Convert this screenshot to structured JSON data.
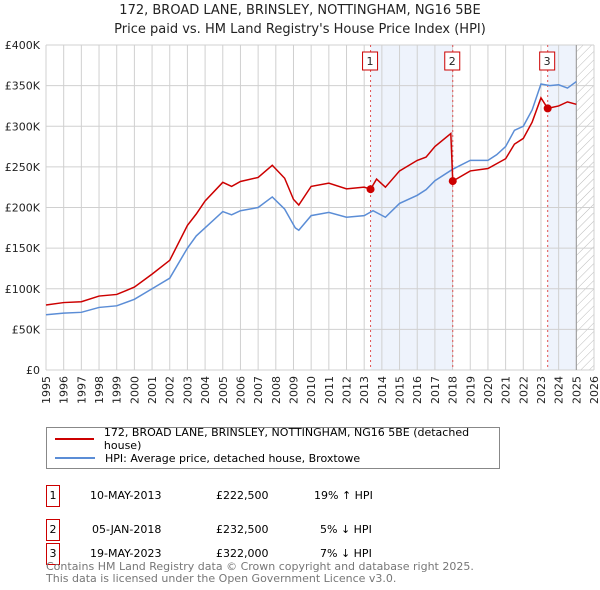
{
  "chart_data": {
    "type": "line",
    "title": "172, BROAD LANE, BRINSLEY, NOTTINGHAM, NG16 5BE",
    "subtitle": "Price paid vs. HM Land Registry's House Price Index (HPI)",
    "xlim": [
      1995,
      2026
    ],
    "ylim": [
      0,
      400000
    ],
    "x_ticks": [
      "1995",
      "1996",
      "1997",
      "1998",
      "1999",
      "2000",
      "2001",
      "2002",
      "2003",
      "2004",
      "2005",
      "2006",
      "2007",
      "2008",
      "2009",
      "2010",
      "2011",
      "2012",
      "2013",
      "2014",
      "2015",
      "2016",
      "2017",
      "2018",
      "2019",
      "2020",
      "2021",
      "2022",
      "2023",
      "2024",
      "2025",
      "2026"
    ],
    "y_ticks": [
      {
        "v": 0,
        "label": "£0"
      },
      {
        "v": 50000,
        "label": "£50K"
      },
      {
        "v": 100000,
        "label": "£100K"
      },
      {
        "v": 150000,
        "label": "£150K"
      },
      {
        "v": 200000,
        "label": "£200K"
      },
      {
        "v": 250000,
        "label": "£250K"
      },
      {
        "v": 300000,
        "label": "£300K"
      },
      {
        "v": 350000,
        "label": "£350K"
      },
      {
        "v": 400000,
        "label": "£400K"
      }
    ],
    "grid": true,
    "shaded_ranges": [
      [
        2013.36,
        2018.01
      ],
      [
        2023.38,
        2025.0
      ]
    ],
    "hatched_from": 2025.0,
    "series": [
      {
        "name": "172, BROAD LANE, BRINSLEY, NOTTINGHAM, NG16 5BE (detached house)",
        "color": "#cc0000",
        "points": [
          [
            1995,
            80000
          ],
          [
            1996,
            83000
          ],
          [
            1997,
            84000
          ],
          [
            1998,
            91000
          ],
          [
            1999,
            93000
          ],
          [
            2000,
            102000
          ],
          [
            2001,
            118000
          ],
          [
            2002,
            135000
          ],
          [
            2003,
            178000
          ],
          [
            2003.5,
            192000
          ],
          [
            2004,
            208000
          ],
          [
            2005,
            231000
          ],
          [
            2005.5,
            226000
          ],
          [
            2006,
            232000
          ],
          [
            2007,
            237000
          ],
          [
            2007.8,
            252000
          ],
          [
            2008.5,
            236000
          ],
          [
            2009,
            210000
          ],
          [
            2009.3,
            203000
          ],
          [
            2010,
            226000
          ],
          [
            2011,
            230000
          ],
          [
            2012,
            223000
          ],
          [
            2013,
            225000
          ],
          [
            2013.36,
            222500
          ],
          [
            2013.7,
            235000
          ],
          [
            2014.2,
            225000
          ],
          [
            2015,
            245000
          ],
          [
            2016,
            258000
          ],
          [
            2016.5,
            262000
          ],
          [
            2017,
            275000
          ],
          [
            2017.9,
            291000
          ],
          [
            2018.01,
            232500
          ],
          [
            2019,
            245000
          ],
          [
            2020,
            248000
          ],
          [
            2021,
            260000
          ],
          [
            2021.5,
            278000
          ],
          [
            2022,
            285000
          ],
          [
            2022.5,
            305000
          ],
          [
            2023,
            335000
          ],
          [
            2023.38,
            322000
          ],
          [
            2024,
            325000
          ],
          [
            2024.5,
            330000
          ],
          [
            2025,
            327000
          ]
        ]
      },
      {
        "name": "HPI: Average price, detached house, Broxtowe",
        "color": "#5b8dd6",
        "points": [
          [
            1995,
            68000
          ],
          [
            1996,
            70000
          ],
          [
            1997,
            71000
          ],
          [
            1998,
            77000
          ],
          [
            1999,
            79000
          ],
          [
            2000,
            87000
          ],
          [
            2001,
            100000
          ],
          [
            2002,
            113000
          ],
          [
            2003,
            150000
          ],
          [
            2003.5,
            165000
          ],
          [
            2004,
            175000
          ],
          [
            2005,
            195000
          ],
          [
            2005.5,
            191000
          ],
          [
            2006,
            196000
          ],
          [
            2007,
            200000
          ],
          [
            2007.8,
            213000
          ],
          [
            2008.5,
            198000
          ],
          [
            2009.1,
            175000
          ],
          [
            2009.3,
            172000
          ],
          [
            2010,
            190000
          ],
          [
            2011,
            194000
          ],
          [
            2012,
            188000
          ],
          [
            2013,
            190000
          ],
          [
            2013.5,
            196000
          ],
          [
            2014.2,
            188000
          ],
          [
            2015,
            205000
          ],
          [
            2016,
            215000
          ],
          [
            2016.5,
            222000
          ],
          [
            2017,
            233000
          ],
          [
            2018,
            247000
          ],
          [
            2019,
            258000
          ],
          [
            2020,
            258000
          ],
          [
            2020.5,
            265000
          ],
          [
            2021,
            275000
          ],
          [
            2021.5,
            295000
          ],
          [
            2022,
            300000
          ],
          [
            2022.5,
            320000
          ],
          [
            2023,
            352000
          ],
          [
            2023.5,
            350000
          ],
          [
            2024,
            351000
          ],
          [
            2024.5,
            347000
          ],
          [
            2025,
            355000
          ]
        ]
      }
    ],
    "sales": [
      {
        "label": "1",
        "x": 2013.36,
        "price": 222500
      },
      {
        "label": "2",
        "x": 2018.01,
        "price": 232500
      },
      {
        "label": "3",
        "x": 2023.38,
        "price": 322000
      }
    ]
  },
  "legend": {
    "red": "172, BROAD LANE, BRINSLEY, NOTTINGHAM, NG16 5BE (detached house)",
    "blue": "HPI: Average price, detached house, Broxtowe"
  },
  "table": [
    {
      "num": "1",
      "date": "10-MAY-2013",
      "price": "£222,500",
      "hpi": "19% ↑ HPI"
    },
    {
      "num": "2",
      "date": "05-JAN-2018",
      "price": "£232,500",
      "hpi": "5% ↓ HPI"
    },
    {
      "num": "3",
      "date": "19-MAY-2023",
      "price": "£322,000",
      "hpi": "7% ↓ HPI"
    }
  ],
  "footer": {
    "line1": "Contains HM Land Registry data © Crown copyright and database right 2025.",
    "line2": "This data is licensed under the Open Government Licence v3.0."
  }
}
